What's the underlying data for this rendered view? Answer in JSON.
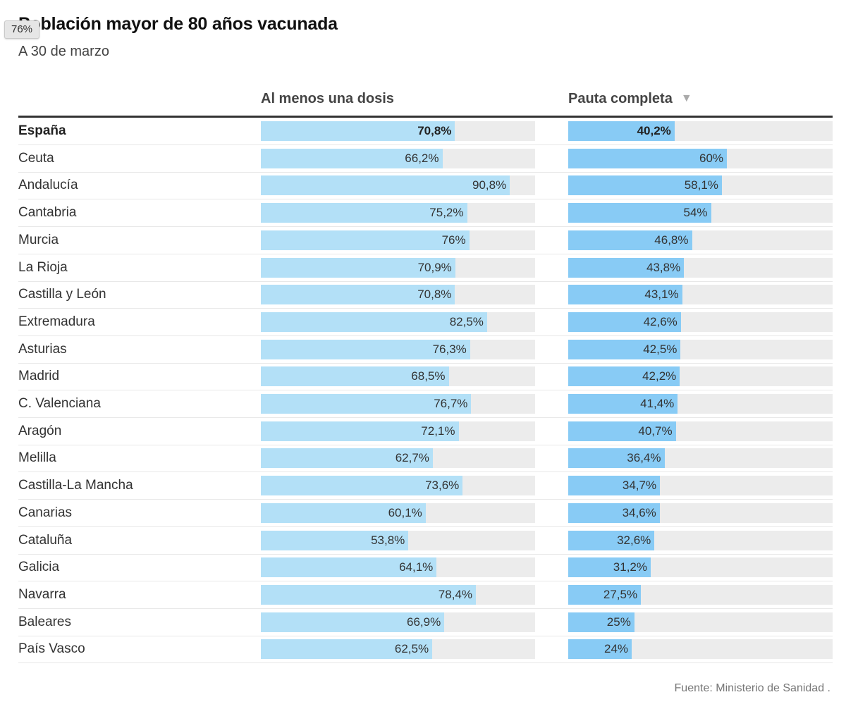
{
  "title": "Población mayor de 80 años vacunada",
  "subtitle": "A 30 de marzo",
  "tooltip": "76%",
  "source": "Fuente: Ministerio de Sanidad .",
  "columns": {
    "first": "Al menos una dosis",
    "second": "Pauta completa",
    "sort_indicator": "▼"
  },
  "colors": {
    "bar_first": "#b3e0f7",
    "bar_second": "#88cbf5",
    "track": "#ececec"
  },
  "chart_data": {
    "type": "bar",
    "orientation": "horizontal",
    "title": "Población mayor de 80 años vacunada",
    "subtitle": "A 30 de marzo",
    "xlim": [
      0,
      100
    ],
    "unit": "%",
    "categories": [
      "España",
      "Ceuta",
      "Andalucía",
      "Cantabria",
      "Murcia",
      "La Rioja",
      "Castilla y León",
      "Extremadura",
      "Asturias",
      "Madrid",
      "C. Valenciana",
      "Aragón",
      "Melilla",
      "Castilla-La Mancha",
      "Canarias",
      "Cataluña",
      "Galicia",
      "Navarra",
      "Baleares",
      "País Vasco"
    ],
    "series": [
      {
        "name": "Al menos una dosis",
        "values": [
          70.8,
          66.2,
          90.8,
          75.2,
          76,
          70.9,
          70.8,
          82.5,
          76.3,
          68.5,
          76.7,
          72.1,
          62.7,
          73.6,
          60.1,
          53.8,
          64.1,
          78.4,
          66.9,
          62.5
        ],
        "labels": [
          "70,8%",
          "66,2%",
          "90,8%",
          "75,2%",
          "76%",
          "70,9%",
          "70,8%",
          "82,5%",
          "76,3%",
          "68,5%",
          "76,7%",
          "72,1%",
          "62,7%",
          "73,6%",
          "60,1%",
          "53,8%",
          "64,1%",
          "78,4%",
          "66,9%",
          "62,5%"
        ]
      },
      {
        "name": "Pauta completa",
        "values": [
          40.2,
          60,
          58.1,
          54,
          46.8,
          43.8,
          43.1,
          42.6,
          42.5,
          42.2,
          41.4,
          40.7,
          36.4,
          34.7,
          34.6,
          32.6,
          31.2,
          27.5,
          25,
          24
        ],
        "labels": [
          "40,2%",
          "60%",
          "58,1%",
          "54%",
          "46,8%",
          "43,8%",
          "43,1%",
          "42,6%",
          "42,5%",
          "42,2%",
          "41,4%",
          "40,7%",
          "36,4%",
          "34,7%",
          "34,6%",
          "32,6%",
          "31,2%",
          "27,5%",
          "25%",
          "24%"
        ]
      }
    ],
    "sorted_by": "Pauta completa",
    "highlighted_row": "España"
  }
}
